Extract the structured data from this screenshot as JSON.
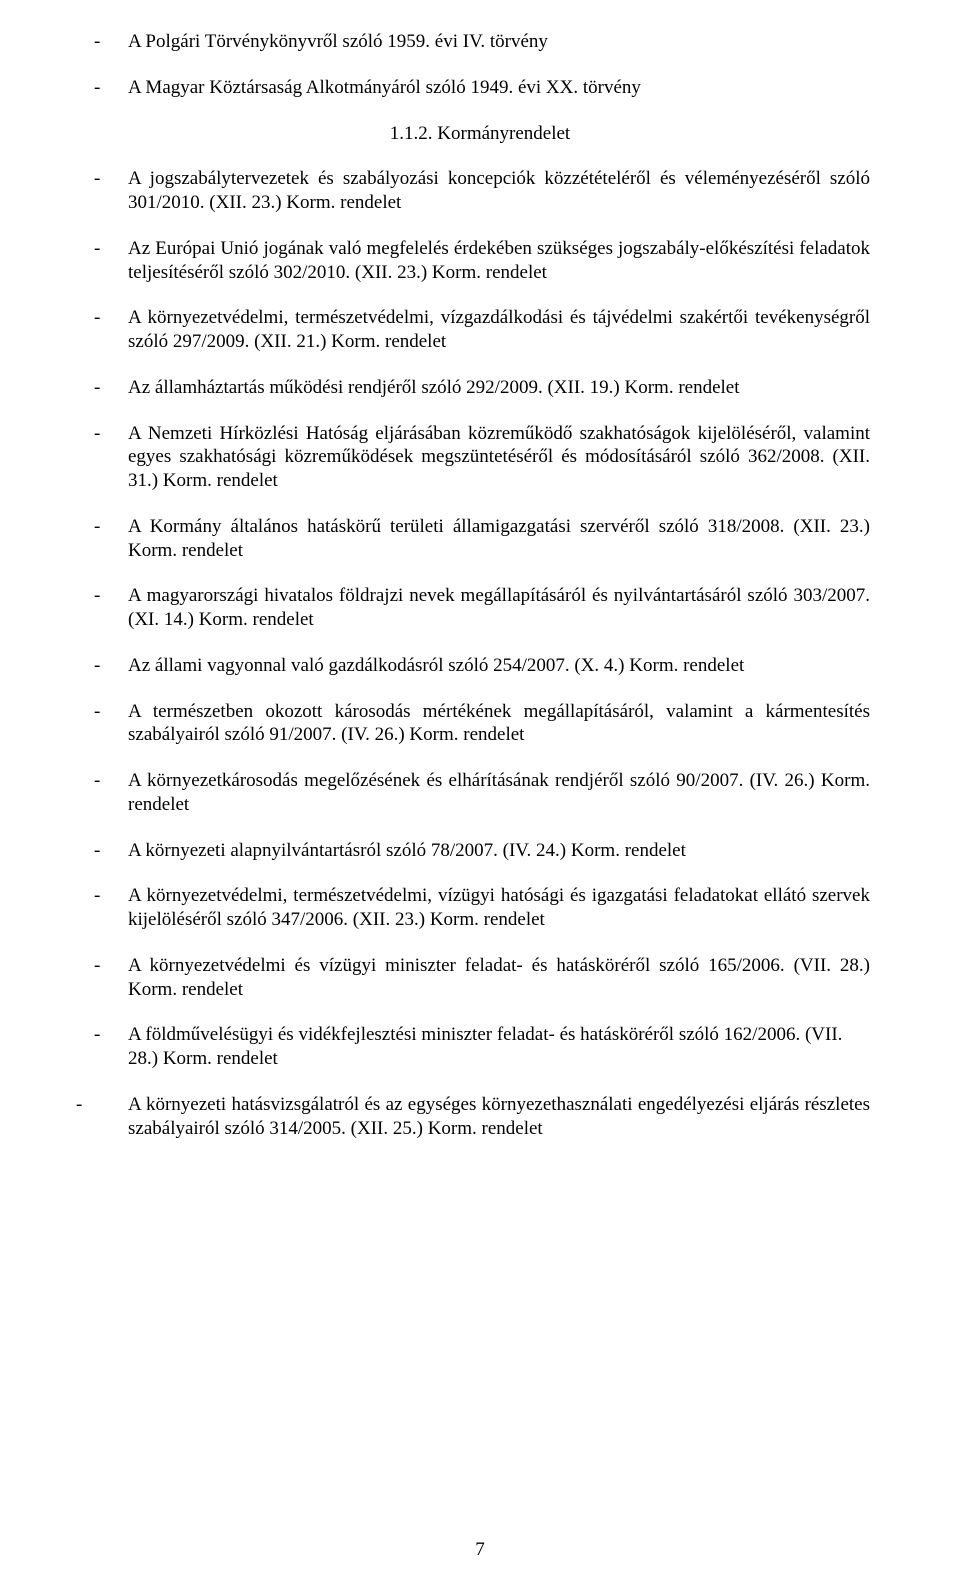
{
  "list1": [
    "A Polgári Törvénykönyvről szóló 1959. évi IV. törvény",
    "A Magyar Köztársaság Alkotmányáról szóló 1949. évi XX. törvény"
  ],
  "section_title": "1.1.2. Kormányrendelet",
  "list2": [
    {
      "text": "A jogszabálytervezetek és szabályozási koncepciók közzétételéről és véleményezéséről szóló 301/2010. (XII. 23.) Korm. rendelet",
      "justify": true
    },
    {
      "text": "Az Európai Unió jogának való megfelelés érdekében szükséges jogszabály-előkészítési feladatok teljesítéséről szóló 302/2010. (XII. 23.) Korm. rendelet",
      "justify": true
    },
    {
      "text": "A környezetvédelmi, természetvédelmi, vízgazdálkodási és tájvédelmi szakértői tevékenységről szóló 297/2009. (XII. 21.) Korm. rendelet",
      "justify": true
    },
    {
      "text": "Az államháztartás működési rendjéről szóló 292/2009. (XII. 19.) Korm. rendelet",
      "justify": false
    },
    {
      "text": "A Nemzeti Hírközlési Hatóság eljárásában közreműködő szakhatóságok kijelöléséről, valamint egyes szakhatósági közreműködések megszüntetéséről és módosításáról szóló 362/2008. (XII. 31.) Korm. rendelet",
      "justify": true
    },
    {
      "text": "A Kormány általános hatáskörű területi államigazgatási szervéről szóló 318/2008. (XII. 23.) Korm. rendelet",
      "justify": true
    },
    {
      "text": "A magyarországi hivatalos földrajzi nevek megállapításáról és nyilvántartásáról szóló 303/2007. (XI. 14.) Korm. rendelet",
      "justify": true
    },
    {
      "text": "Az állami vagyonnal való gazdálkodásról szóló 254/2007. (X. 4.) Korm. rendelet",
      "justify": false
    },
    {
      "text": "A természetben okozott károsodás mértékének megállapításáról, valamint a kármentesítés szabályairól szóló 91/2007. (IV. 26.) Korm. rendelet",
      "justify": true
    },
    {
      "text": "A környezetkárosodás megelőzésének és elhárításának rendjéről szóló 90/2007. (IV. 26.) Korm. rendelet",
      "justify": true
    },
    {
      "text": "A környezeti alapnyilvántartásról szóló 78/2007. (IV. 24.) Korm. rendelet",
      "justify": false
    },
    {
      "text": "A környezetvédelmi, természetvédelmi, vízügyi hatósági és igazgatási feladatokat ellátó szervek kijelöléséről szóló 347/2006. (XII. 23.) Korm. rendelet",
      "justify": true
    },
    {
      "text": "A környezetvédelmi és vízügyi miniszter feladat- és hatásköréről szóló 165/2006. (VII. 28.) Korm. rendelet",
      "justify": true
    },
    {
      "text": "A földművelésügyi és vidékfejlesztési miniszter feladat- és hatásköréről szóló 162/2006. (VII. 28.) Korm. rendelet",
      "justify": false
    }
  ],
  "trailing_para": "A környezeti hatásvizsgálatról és az egységes környezethasználati engedélyezési eljárás részletes szabályairól szóló 314/2005. (XII. 25.) Korm. rendelet",
  "page_number": "7"
}
